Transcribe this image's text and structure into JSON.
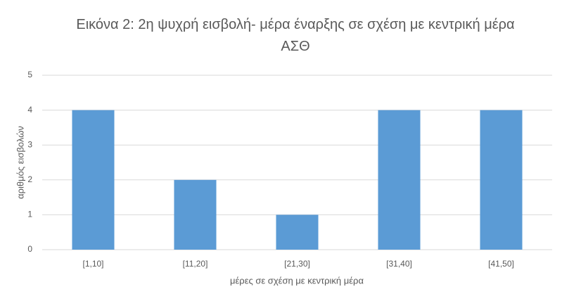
{
  "chart_data": {
    "type": "bar",
    "title": "Εικόνα 2: 2η ψυχρή εισβολή- μέρα έναρξης σε σχέση με κεντρική μέρα ΑΣΘ",
    "x_label": "μέρες σε σχέση με κεντρική μέρα",
    "y_label": "αριθμός εισβολών",
    "categories": [
      "[1,10]",
      "[11,20]",
      "[21,30]",
      "[31,40]",
      "[41,50]"
    ],
    "values": [
      4,
      2,
      1,
      4,
      4
    ],
    "color": "#5b9bd5",
    "ylim": [
      0,
      5
    ],
    "yticks": [
      0,
      1,
      2,
      3,
      4,
      5
    ],
    "grid": true
  }
}
